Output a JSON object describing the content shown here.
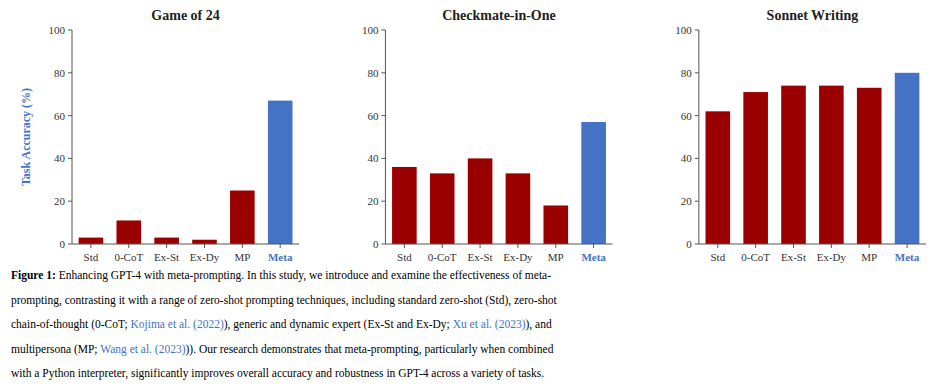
{
  "chart_data": [
    {
      "type": "bar",
      "title": "Game of 24",
      "categories": [
        "Std",
        "0-CoT",
        "Ex-St",
        "Ex-Dy",
        "MP",
        "Meta"
      ],
      "values": [
        3,
        11,
        3,
        2,
        25,
        67
      ],
      "colors": [
        "#9B0000",
        "#9B0000",
        "#9B0000",
        "#9B0000",
        "#9B0000",
        "#4472C4"
      ],
      "ylabel": "Task Accuracy (%)",
      "ylim": [
        0,
        100
      ],
      "yticks": [
        0,
        20,
        40,
        60,
        80,
        100
      ],
      "grid": false
    },
    {
      "type": "bar",
      "title": "Checkmate-in-One",
      "categories": [
        "Std",
        "0-CoT",
        "Ex-St",
        "Ex-Dy",
        "MP",
        "Meta"
      ],
      "values": [
        36,
        33,
        40,
        33,
        18,
        57
      ],
      "colors": [
        "#9B0000",
        "#9B0000",
        "#9B0000",
        "#9B0000",
        "#9B0000",
        "#4472C4"
      ],
      "ylim": [
        0,
        100
      ],
      "yticks": [
        0,
        20,
        40,
        60,
        80,
        100
      ],
      "grid": false
    },
    {
      "type": "bar",
      "title": "Sonnet Writing",
      "categories": [
        "Std",
        "0-CoT",
        "Ex-St",
        "Ex-Dy",
        "MP",
        "Meta"
      ],
      "values": [
        62,
        71,
        74,
        74,
        73,
        80
      ],
      "colors": [
        "#9B0000",
        "#9B0000",
        "#9B0000",
        "#9B0000",
        "#9B0000",
        "#4472C4"
      ],
      "ylim": [
        0,
        100
      ],
      "yticks": [
        0,
        20,
        40,
        60,
        80,
        100
      ],
      "grid": false
    }
  ],
  "caption": [
    [
      {
        "text": "Figure 1:",
        "color": "#000000",
        "bold": true
      },
      {
        "text": " Enhancing GPT-4 with meta-prompting. In this study, we introduce and examine the effectiveness of meta-",
        "color": "#000000",
        "bold": false
      }
    ],
    [
      {
        "text": "prompting, contrasting it with a range of zero-shot prompting techniques, including standard zero-shot (Std), zero-shot",
        "color": "#000000",
        "bold": false
      }
    ],
    [
      {
        "text": "chain-of-thought (0-CoT; ",
        "color": "#000000",
        "bold": false
      },
      {
        "text": "Kojima et al. (2022)",
        "color": "#4472C4",
        "bold": false
      },
      {
        "text": "), generic and dynamic expert (Ex-St and Ex-Dy; ",
        "color": "#000000",
        "bold": false
      },
      {
        "text": "Xu et al. (2023)",
        "color": "#4472C4",
        "bold": false
      },
      {
        "text": "), and",
        "color": "#000000",
        "bold": false
      }
    ],
    [
      {
        "text": "multipersona (MP; ",
        "color": "#000000",
        "bold": false
      },
      {
        "text": "Wang et al. (2023)",
        "color": "#4472C4",
        "bold": false
      },
      {
        "text": ")). Our research demonstrates that meta-prompting, particularly when combined",
        "color": "#000000",
        "bold": false
      }
    ],
    [
      {
        "text": "with a Python interpreter, significantly improves overall accuracy and robustness in GPT-4 across a variety of tasks.",
        "color": "#000000",
        "bold": false
      }
    ]
  ]
}
